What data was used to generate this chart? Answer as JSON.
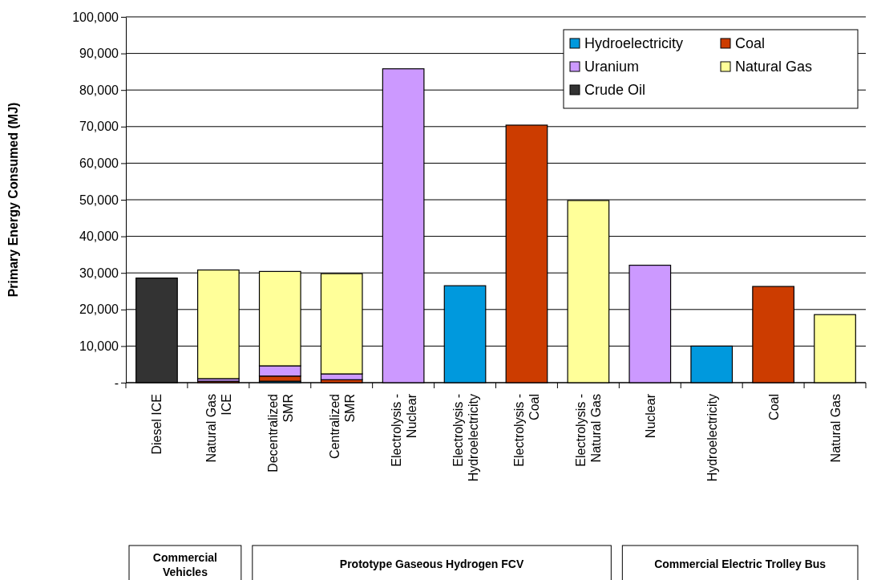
{
  "chart_data": {
    "type": "bar",
    "stacked": true,
    "ylabel": "Primary Energy Consumed (MJ)",
    "categories": [
      "Diesel ICE",
      "Natural Gas ICE",
      "Decentralized SMR",
      "Centralized SMR",
      "Electrolysis - Nuclear",
      "Electrolysis - Hydroelectricity",
      "Electrolysis - Coal",
      "Electrolysis - Natural Gas",
      "Nuclear",
      "Hydroelectricity",
      "Coal",
      "Natural Gas"
    ],
    "series": [
      {
        "name": "Hydroelectricity",
        "color": "#0099dd",
        "values": [
          null,
          null,
          400,
          null,
          null,
          26500,
          null,
          null,
          null,
          10000,
          null,
          null
        ]
      },
      {
        "name": "Coal",
        "color": "#cc3c00",
        "values": [
          null,
          400,
          1400,
          800,
          null,
          null,
          70400,
          null,
          null,
          null,
          26300,
          null
        ]
      },
      {
        "name": "Uranium",
        "color": "#cc99ff",
        "values": [
          null,
          700,
          2800,
          1600,
          85800,
          null,
          null,
          null,
          32100,
          null,
          null,
          null
        ]
      },
      {
        "name": "Natural Gas",
        "color": "#ffff99",
        "values": [
          null,
          29700,
          25800,
          27400,
          null,
          null,
          null,
          49800,
          null,
          null,
          null,
          18600
        ]
      },
      {
        "name": "Crude Oil",
        "color": "#333333",
        "values": [
          28600,
          null,
          null,
          null,
          null,
          null,
          null,
          null,
          null,
          null,
          null,
          null
        ]
      }
    ],
    "ylim": [
      0,
      100000
    ],
    "yticks": [
      {
        "value": 0,
        "label": "-"
      },
      {
        "value": 10000,
        "label": "10,000"
      },
      {
        "value": 20000,
        "label": "20,000"
      },
      {
        "value": 30000,
        "label": "30,000"
      },
      {
        "value": 40000,
        "label": "40,000"
      },
      {
        "value": 50000,
        "label": "50,000"
      },
      {
        "value": 60000,
        "label": "60,000"
      },
      {
        "value": 70000,
        "label": "70,000"
      },
      {
        "value": 80000,
        "label": "80,000"
      },
      {
        "value": 90000,
        "label": "90,000"
      },
      {
        "value": 100000,
        "label": "100,000"
      }
    ],
    "grid": "y",
    "legend": "top right",
    "annotations": [
      "Commercial Vehicles",
      "Prototype Gaseous Hydrogen FCV",
      "Commercial Electric Trolley Bus"
    ]
  }
}
